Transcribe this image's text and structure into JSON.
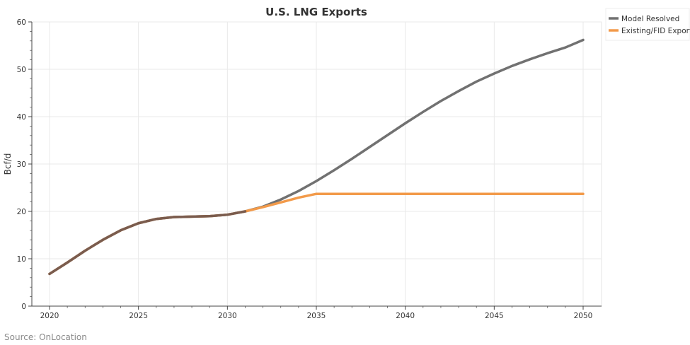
{
  "chart_data": {
    "type": "line",
    "title": "U.S. LNG Exports",
    "xlabel": "",
    "ylabel": "Bcf/d",
    "xlim": [
      2020,
      2050
    ],
    "ylim": [
      0,
      60
    ],
    "x_ticks": [
      2020,
      2025,
      2030,
      2035,
      2040,
      2045,
      2050
    ],
    "y_ticks": [
      0,
      10,
      20,
      30,
      40,
      50,
      60
    ],
    "grid": true,
    "legend_position": "top-right",
    "x": [
      2020,
      2021,
      2022,
      2023,
      2024,
      2025,
      2026,
      2027,
      2028,
      2029,
      2030,
      2031,
      2032,
      2033,
      2034,
      2035,
      2036,
      2037,
      2038,
      2039,
      2040,
      2041,
      2042,
      2043,
      2044,
      2045,
      2046,
      2047,
      2048,
      2049,
      2050
    ],
    "series": [
      {
        "name": "Model Resolved",
        "color": "#717171",
        "values": [
          6.8,
          9.2,
          11.7,
          14.0,
          16.0,
          17.5,
          18.4,
          18.8,
          18.9,
          19.0,
          19.3,
          20.0,
          21.0,
          22.5,
          24.3,
          26.4,
          28.7,
          31.1,
          33.6,
          36.1,
          38.6,
          41.0,
          43.3,
          45.4,
          47.4,
          49.1,
          50.7,
          52.1,
          53.4,
          54.6,
          56.2
        ]
      },
      {
        "name": "Existing/FID Exports",
        "color": "#f29a4a",
        "values": [
          6.8,
          9.2,
          11.7,
          14.0,
          16.0,
          17.5,
          18.4,
          18.8,
          18.9,
          19.0,
          19.3,
          20.0,
          20.9,
          21.9,
          22.9,
          23.7,
          23.7,
          23.7,
          23.7,
          23.7,
          23.7,
          23.7,
          23.7,
          23.7,
          23.7,
          23.7,
          23.7,
          23.7,
          23.7,
          23.7,
          23.7
        ]
      }
    ],
    "overlap_color": "#7a5c4e",
    "source": "Source: OnLocation"
  }
}
